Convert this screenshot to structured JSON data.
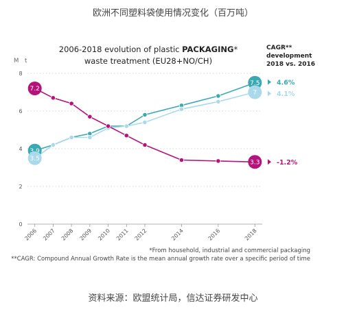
{
  "page": {
    "title": "欧洲不同塑料袋使用情况变化（百万吨）",
    "source": "资料来源：欧盟统计局，信达证券研发中心"
  },
  "chart_data": {
    "type": "line",
    "title_line1_pre": "2006-2018 evolution of plastic ",
    "title_line1_bold": "PACKAGING",
    "title_line1_post": "*",
    "title_line2": "waste treatment (EU28+NO/CH)",
    "ylabel": "M t",
    "ylim": [
      0,
      8
    ],
    "yticks": [
      0,
      2,
      4,
      6,
      8
    ],
    "xlim": [
      2005.6,
      2018.4
    ],
    "xticks": [
      2006,
      2007,
      2008,
      2009,
      2010,
      2011,
      2012,
      2014,
      2016,
      2018
    ],
    "cagr_header": [
      "CAGR**",
      "development",
      "2018 vs. 2016"
    ],
    "footnotes": [
      "*From household, industrial and commercial packaging",
      "**CAGR: Compound Annual Growth Rate is the mean annual growth rate over a specific period of time"
    ],
    "series": [
      {
        "key": "teal",
        "color": "#3aa9b4",
        "x": [
          2006,
          2007,
          2008,
          2009,
          2010,
          2011,
          2012,
          2014,
          2016,
          2018
        ],
        "y": [
          3.9,
          4.2,
          4.6,
          4.8,
          5.2,
          5.2,
          5.8,
          6.3,
          6.8,
          7.5
        ],
        "label_start": "3.9",
        "label_end": "7.5",
        "cagr": "4.6%"
      },
      {
        "key": "lightblue",
        "color": "#a9d9ea",
        "x": [
          2006,
          2007,
          2008,
          2009,
          2010,
          2011,
          2012,
          2014,
          2016,
          2018
        ],
        "y": [
          3.5,
          4.2,
          4.6,
          4.6,
          5.1,
          5.2,
          5.4,
          6.1,
          6.5,
          7.0
        ],
        "label_start": "3.5",
        "label_end": "7",
        "cagr": "4.1%"
      },
      {
        "key": "magenta",
        "color": "#b5137a",
        "x": [
          2006,
          2007,
          2008,
          2009,
          2010,
          2011,
          2012,
          2014,
          2016,
          2018
        ],
        "y": [
          7.2,
          6.7,
          6.4,
          5.7,
          5.2,
          4.7,
          4.2,
          3.4,
          3.35,
          3.3
        ],
        "label_start": "7.2",
        "label_end": "3.3",
        "cagr": "-1.2%"
      }
    ]
  }
}
